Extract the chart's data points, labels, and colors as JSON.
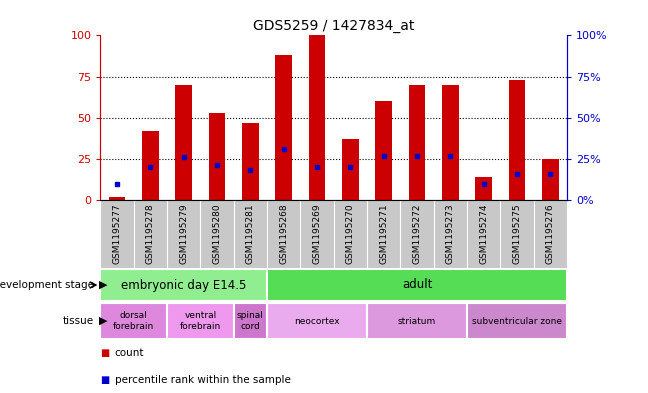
{
  "title": "GDS5259 / 1427834_at",
  "samples": [
    "GSM1195277",
    "GSM1195278",
    "GSM1195279",
    "GSM1195280",
    "GSM1195281",
    "GSM1195268",
    "GSM1195269",
    "GSM1195270",
    "GSM1195271",
    "GSM1195272",
    "GSM1195273",
    "GSM1195274",
    "GSM1195275",
    "GSM1195276"
  ],
  "count_values": [
    2,
    42,
    70,
    53,
    47,
    88,
    100,
    37,
    60,
    70,
    70,
    14,
    73,
    25
  ],
  "percentile_values": [
    10,
    20,
    26,
    21,
    18,
    31,
    20,
    20,
    27,
    27,
    27,
    10,
    16,
    16
  ],
  "ylim_left": [
    0,
    100
  ],
  "yticks": [
    0,
    25,
    50,
    75,
    100
  ],
  "ytick_labels_left": [
    "0",
    "25",
    "50",
    "75",
    "100"
  ],
  "ytick_labels_right": [
    "0%",
    "25%",
    "50%",
    "75%",
    "100%"
  ],
  "bar_color": "#cc0000",
  "dot_color": "#0000cc",
  "bar_width": 0.5,
  "development_stages": [
    {
      "label": "embryonic day E14.5",
      "start": 0,
      "end": 5,
      "color": "#90ee90"
    },
    {
      "label": "adult",
      "start": 5,
      "end": 14,
      "color": "#55dd55"
    }
  ],
  "tissues": [
    {
      "label": "dorsal\nforebrain",
      "start": 0,
      "end": 2,
      "color": "#dd88dd"
    },
    {
      "label": "ventral\nforebrain",
      "start": 2,
      "end": 4,
      "color": "#ee99ee"
    },
    {
      "label": "spinal\ncord",
      "start": 4,
      "end": 5,
      "color": "#cc77cc"
    },
    {
      "label": "neocortex",
      "start": 5,
      "end": 8,
      "color": "#eaaaee"
    },
    {
      "label": "striatum",
      "start": 8,
      "end": 11,
      "color": "#dd99dd"
    },
    {
      "label": "subventricular zone",
      "start": 11,
      "end": 14,
      "color": "#cc88cc"
    }
  ],
  "legend_count_color": "#cc0000",
  "legend_dot_color": "#0000cc",
  "bg_color": "#ffffff",
  "tick_area_color": "#c8c8c8",
  "left_axis_color": "#cc0000",
  "right_axis_color": "#0000cc"
}
